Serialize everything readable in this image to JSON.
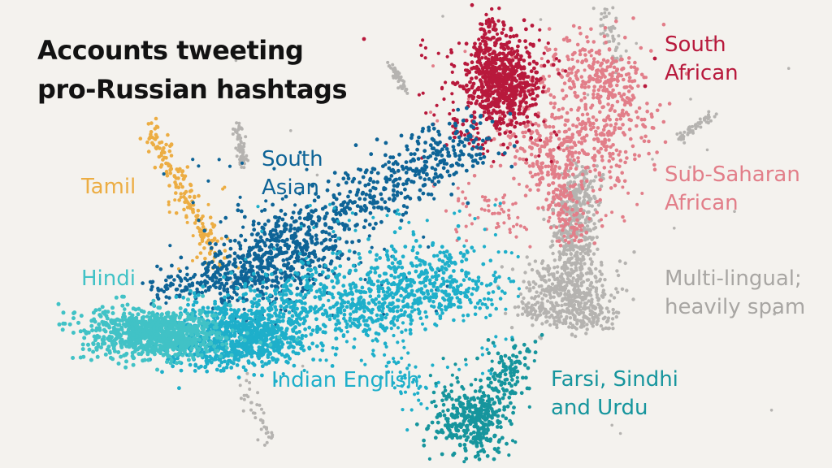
{
  "title": {
    "line1": "Accounts tweeting",
    "line2": "pro-Russian hashtags"
  },
  "colors": {
    "background": "#f4f2ee",
    "south_african": "#b8193c",
    "sub_saharan": "#e27e89",
    "multilingual": "#b5b3b0",
    "south_asian": "#0e6497",
    "tamil": "#ecad43",
    "hindi": "#41c2c6",
    "indian_english": "#1eafca",
    "farsi": "#16959d"
  },
  "labels": {
    "south_african": {
      "line1": "South",
      "line2": "African"
    },
    "sub_saharan": {
      "line1": "Sub-Saharan",
      "line2": "African"
    },
    "multilingual": {
      "line1": "Multi-lingual;",
      "line2": "heavily spam"
    },
    "south_asian": {
      "line1": "South",
      "line2": "Asian"
    },
    "tamil": {
      "line1": "Tamil"
    },
    "hindi": {
      "line1": "Hindi"
    },
    "indian_english": {
      "line1": "Indian English"
    },
    "farsi": {
      "line1": "Farsi, Sindhi",
      "line2": "and Urdu"
    }
  },
  "chart_data": {
    "type": "scatter",
    "title": "Accounts tweeting pro-Russian hashtags",
    "xlabel": "",
    "ylabel": "",
    "grid": false,
    "legend": "none",
    "series": [
      {
        "name": "South African"
      },
      {
        "name": "Sub-Saharan African"
      },
      {
        "name": "Multi-lingual; heavily spam"
      },
      {
        "name": "South Asian"
      },
      {
        "name": "Tamil"
      },
      {
        "name": "Hindi"
      },
      {
        "name": "Indian English"
      },
      {
        "name": "Farsi, Sindhi and Urdu"
      }
    ]
  }
}
